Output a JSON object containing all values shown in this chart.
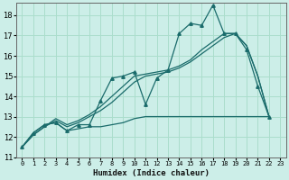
{
  "title": "",
  "xlabel": "Humidex (Indice chaleur)",
  "ylabel": "",
  "bg_color": "#cceee8",
  "grid_color": "#aaddcc",
  "line_color": "#1a6b6b",
  "xlim": [
    -0.5,
    23.5
  ],
  "ylim": [
    11,
    18.6
  ],
  "yticks": [
    11,
    12,
    13,
    14,
    15,
    16,
    17,
    18
  ],
  "xticks": [
    0,
    1,
    2,
    3,
    4,
    5,
    6,
    7,
    8,
    9,
    10,
    11,
    12,
    13,
    14,
    15,
    16,
    17,
    18,
    19,
    20,
    21,
    22,
    23
  ],
  "series": [
    {
      "x": [
        0,
        1,
        2,
        3,
        4,
        5,
        6,
        7,
        8,
        9,
        10,
        11,
        12,
        13,
        14,
        15,
        16,
        17,
        18,
        19,
        20,
        21,
        22
      ],
      "y": [
        11.5,
        12.2,
        12.6,
        12.7,
        12.3,
        12.6,
        12.6,
        13.8,
        14.9,
        15.0,
        15.2,
        13.6,
        14.9,
        15.3,
        17.1,
        17.6,
        17.5,
        18.5,
        17.1,
        17.1,
        16.3,
        14.5,
        13.0
      ],
      "marker": "^",
      "lw": 0.9
    },
    {
      "x": [
        0,
        1,
        2,
        3,
        4,
        5,
        6,
        7,
        8,
        9,
        10,
        11,
        12,
        13,
        14,
        15,
        16,
        17,
        18,
        19,
        20,
        21,
        22
      ],
      "y": [
        11.5,
        12.1,
        12.5,
        12.8,
        12.5,
        12.7,
        13.0,
        13.3,
        13.7,
        14.2,
        14.7,
        15.0,
        15.1,
        15.2,
        15.4,
        15.7,
        16.1,
        16.5,
        16.9,
        17.1,
        16.5,
        15.0,
        13.0
      ],
      "marker": null,
      "lw": 0.9
    },
    {
      "x": [
        0,
        1,
        2,
        3,
        4,
        5,
        6,
        7,
        8,
        9,
        10,
        11,
        12,
        13,
        14,
        15,
        16,
        17,
        18,
        19,
        20,
        21,
        22
      ],
      "y": [
        11.5,
        12.1,
        12.5,
        12.9,
        12.6,
        12.8,
        13.1,
        13.5,
        14.0,
        14.5,
        15.0,
        15.1,
        15.2,
        15.3,
        15.5,
        15.8,
        16.3,
        16.7,
        17.1,
        17.1,
        16.5,
        15.0,
        13.0
      ],
      "marker": null,
      "lw": 0.9
    },
    {
      "x": [
        0,
        1,
        2,
        3,
        4,
        5,
        6,
        7,
        8,
        9,
        10,
        11,
        12,
        13,
        14,
        15,
        16,
        17,
        18,
        19,
        20,
        21,
        22
      ],
      "y": [
        11.5,
        12.2,
        12.6,
        12.7,
        12.3,
        12.4,
        12.5,
        12.5,
        12.6,
        12.7,
        12.9,
        13.0,
        13.0,
        13.0,
        13.0,
        13.0,
        13.0,
        13.0,
        13.0,
        13.0,
        13.0,
        13.0,
        13.0
      ],
      "marker": null,
      "lw": 0.9
    }
  ]
}
